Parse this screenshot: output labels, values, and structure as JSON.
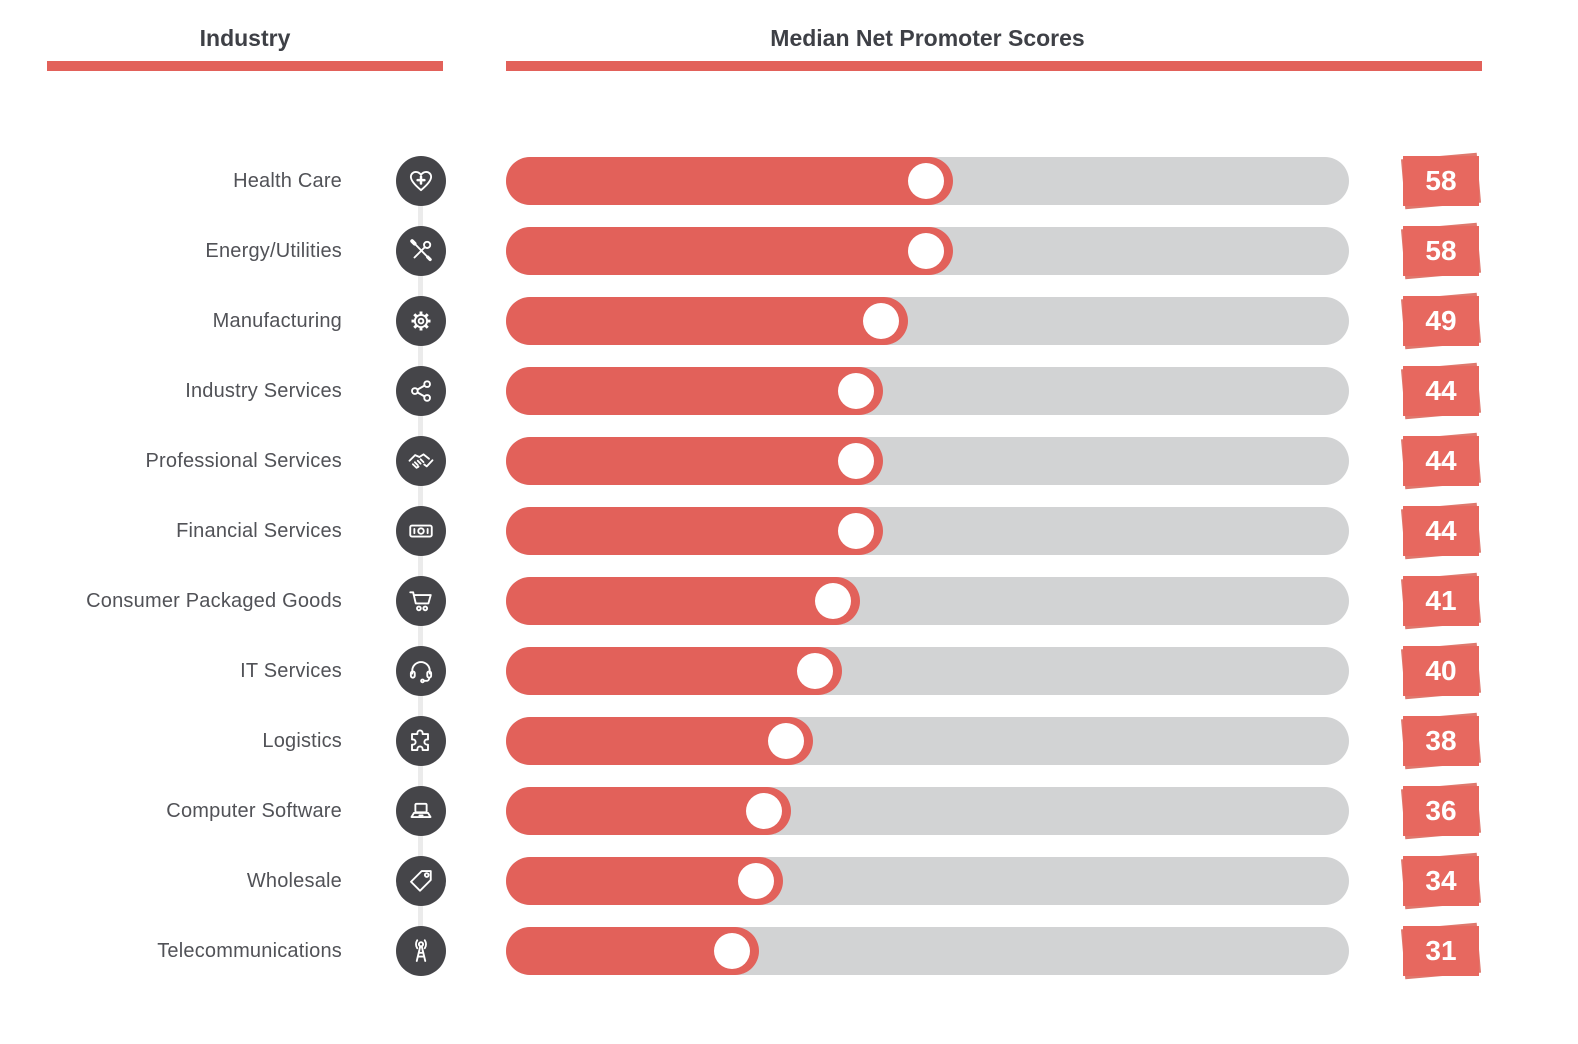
{
  "header": {
    "industry_title": "Industry",
    "scores_title": "Median Net Promoter Scores"
  },
  "chart_data": {
    "type": "bar",
    "orientation": "horizontal",
    "title": "Median Net Promoter Scores",
    "categories": [
      "Health Care",
      "Energy/Utilities",
      "Manufacturing",
      "Industry Services",
      "Professional Services",
      "Financial Services",
      "Consumer Packaged Goods",
      "IT Services",
      "Logistics",
      "Computer Software",
      "Wholesale",
      "Telecommunications"
    ],
    "values": [
      58,
      58,
      49,
      44,
      44,
      44,
      41,
      40,
      38,
      36,
      34,
      31
    ],
    "xlabel": "",
    "ylabel": "",
    "xlim": [
      0,
      100
    ],
    "grid": false,
    "legend": false
  },
  "rows": [
    {
      "label": "Health Care",
      "icon": "heart-plus",
      "value": 58,
      "fill_pct": 53.0
    },
    {
      "label": "Energy/Utilities",
      "icon": "tools",
      "value": 58,
      "fill_pct": 53.0
    },
    {
      "label": "Manufacturing",
      "icon": "gear",
      "value": 49,
      "fill_pct": 47.7
    },
    {
      "label": "Industry Services",
      "icon": "share",
      "value": 44,
      "fill_pct": 44.7
    },
    {
      "label": "Professional Services",
      "icon": "handshake",
      "value": 44,
      "fill_pct": 44.7
    },
    {
      "label": "Financial Services",
      "icon": "banknote",
      "value": 44,
      "fill_pct": 44.7
    },
    {
      "label": "Consumer Packaged Goods",
      "icon": "cart",
      "value": 41,
      "fill_pct": 42.0
    },
    {
      "label": "IT Services",
      "icon": "headset",
      "value": 40,
      "fill_pct": 39.8
    },
    {
      "label": "Logistics",
      "icon": "puzzle",
      "value": 38,
      "fill_pct": 36.4
    },
    {
      "label": "Computer Software",
      "icon": "laptop",
      "value": 36,
      "fill_pct": 33.8
    },
    {
      "label": "Wholesale",
      "icon": "tag",
      "value": 34,
      "fill_pct": 32.8
    },
    {
      "label": "Telecommunications",
      "icon": "antenna",
      "value": 31,
      "fill_pct": 30.0
    }
  ],
  "colors": {
    "accent_red": "#e2615a",
    "badge_red": "#e7685f",
    "badge_back_red": "#df786d",
    "track_gray": "#d2d3d4",
    "icon_circle_bg": "#454549",
    "connector_gray": "#ebebeb",
    "label_text": "#515257",
    "header_text": "#3e4046"
  }
}
